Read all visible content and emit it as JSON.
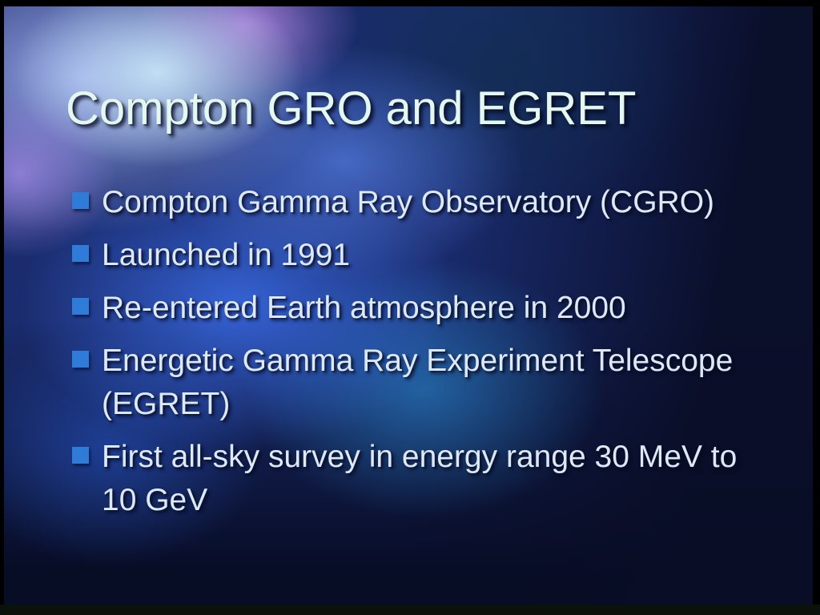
{
  "slide": {
    "title": "Compton GRO and EGRET",
    "bullets": [
      {
        "text": "Compton Gamma Ray Observatory (CGRO)"
      },
      {
        "text": "Launched in 1991"
      },
      {
        "text": "Re-entered Earth atmosphere in 2000"
      },
      {
        "text": "Energetic Gamma Ray Experiment Telescope (EGRET)"
      },
      {
        "text": "First all-sky survey in energy range 30 MeV to 10 GeV"
      }
    ],
    "colors": {
      "title_text": "#e4f8f0",
      "body_text": "#dde9f8",
      "bullet_marker": "#2e7bd8",
      "background_base": "#1a2c6e",
      "frame": "#000000"
    }
  }
}
